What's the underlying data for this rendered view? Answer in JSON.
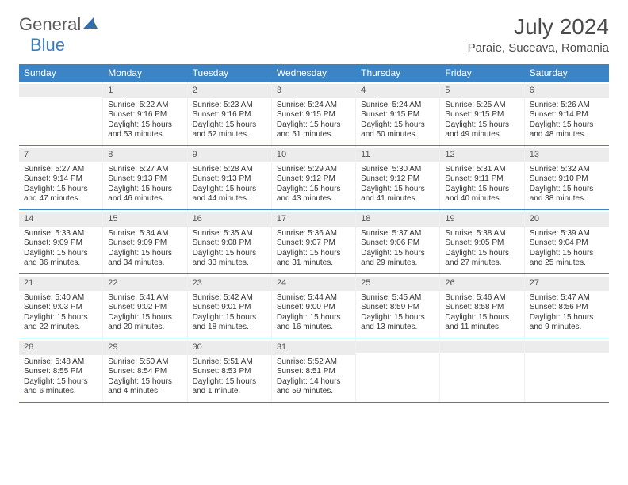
{
  "logo": {
    "text1": "General",
    "text2": "Blue",
    "color1": "#5a5a5a",
    "color2": "#3b7bbf",
    "sail_color": "#2f6fb0"
  },
  "title": "July 2024",
  "location": "Paraie, Suceava, Romania",
  "colors": {
    "header_bg": "#3b85c6",
    "header_text": "#ffffff",
    "daynum_bg": "#ececec",
    "body_text": "#333333",
    "divider": "#3b85c6"
  },
  "fonts": {
    "title_size": 28,
    "location_size": 15,
    "dayhead_size": 12,
    "cell_size": 10
  },
  "day_headers": [
    "Sunday",
    "Monday",
    "Tuesday",
    "Wednesday",
    "Thursday",
    "Friday",
    "Saturday"
  ],
  "weeks": [
    [
      {
        "n": "",
        "sr": "",
        "ss": "",
        "dl": ""
      },
      {
        "n": "1",
        "sr": "5:22 AM",
        "ss": "9:16 PM",
        "dl": "15 hours and 53 minutes."
      },
      {
        "n": "2",
        "sr": "5:23 AM",
        "ss": "9:16 PM",
        "dl": "15 hours and 52 minutes."
      },
      {
        "n": "3",
        "sr": "5:24 AM",
        "ss": "9:15 PM",
        "dl": "15 hours and 51 minutes."
      },
      {
        "n": "4",
        "sr": "5:24 AM",
        "ss": "9:15 PM",
        "dl": "15 hours and 50 minutes."
      },
      {
        "n": "5",
        "sr": "5:25 AM",
        "ss": "9:15 PM",
        "dl": "15 hours and 49 minutes."
      },
      {
        "n": "6",
        "sr": "5:26 AM",
        "ss": "9:14 PM",
        "dl": "15 hours and 48 minutes."
      }
    ],
    [
      {
        "n": "7",
        "sr": "5:27 AM",
        "ss": "9:14 PM",
        "dl": "15 hours and 47 minutes."
      },
      {
        "n": "8",
        "sr": "5:27 AM",
        "ss": "9:13 PM",
        "dl": "15 hours and 46 minutes."
      },
      {
        "n": "9",
        "sr": "5:28 AM",
        "ss": "9:13 PM",
        "dl": "15 hours and 44 minutes."
      },
      {
        "n": "10",
        "sr": "5:29 AM",
        "ss": "9:12 PM",
        "dl": "15 hours and 43 minutes."
      },
      {
        "n": "11",
        "sr": "5:30 AM",
        "ss": "9:12 PM",
        "dl": "15 hours and 41 minutes."
      },
      {
        "n": "12",
        "sr": "5:31 AM",
        "ss": "9:11 PM",
        "dl": "15 hours and 40 minutes."
      },
      {
        "n": "13",
        "sr": "5:32 AM",
        "ss": "9:10 PM",
        "dl": "15 hours and 38 minutes."
      }
    ],
    [
      {
        "n": "14",
        "sr": "5:33 AM",
        "ss": "9:09 PM",
        "dl": "15 hours and 36 minutes."
      },
      {
        "n": "15",
        "sr": "5:34 AM",
        "ss": "9:09 PM",
        "dl": "15 hours and 34 minutes."
      },
      {
        "n": "16",
        "sr": "5:35 AM",
        "ss": "9:08 PM",
        "dl": "15 hours and 33 minutes."
      },
      {
        "n": "17",
        "sr": "5:36 AM",
        "ss": "9:07 PM",
        "dl": "15 hours and 31 minutes."
      },
      {
        "n": "18",
        "sr": "5:37 AM",
        "ss": "9:06 PM",
        "dl": "15 hours and 29 minutes."
      },
      {
        "n": "19",
        "sr": "5:38 AM",
        "ss": "9:05 PM",
        "dl": "15 hours and 27 minutes."
      },
      {
        "n": "20",
        "sr": "5:39 AM",
        "ss": "9:04 PM",
        "dl": "15 hours and 25 minutes."
      }
    ],
    [
      {
        "n": "21",
        "sr": "5:40 AM",
        "ss": "9:03 PM",
        "dl": "15 hours and 22 minutes."
      },
      {
        "n": "22",
        "sr": "5:41 AM",
        "ss": "9:02 PM",
        "dl": "15 hours and 20 minutes."
      },
      {
        "n": "23",
        "sr": "5:42 AM",
        "ss": "9:01 PM",
        "dl": "15 hours and 18 minutes."
      },
      {
        "n": "24",
        "sr": "5:44 AM",
        "ss": "9:00 PM",
        "dl": "15 hours and 16 minutes."
      },
      {
        "n": "25",
        "sr": "5:45 AM",
        "ss": "8:59 PM",
        "dl": "15 hours and 13 minutes."
      },
      {
        "n": "26",
        "sr": "5:46 AM",
        "ss": "8:58 PM",
        "dl": "15 hours and 11 minutes."
      },
      {
        "n": "27",
        "sr": "5:47 AM",
        "ss": "8:56 PM",
        "dl": "15 hours and 9 minutes."
      }
    ],
    [
      {
        "n": "28",
        "sr": "5:48 AM",
        "ss": "8:55 PM",
        "dl": "15 hours and 6 minutes."
      },
      {
        "n": "29",
        "sr": "5:50 AM",
        "ss": "8:54 PM",
        "dl": "15 hours and 4 minutes."
      },
      {
        "n": "30",
        "sr": "5:51 AM",
        "ss": "8:53 PM",
        "dl": "15 hours and 1 minute."
      },
      {
        "n": "31",
        "sr": "5:52 AM",
        "ss": "8:51 PM",
        "dl": "14 hours and 59 minutes."
      },
      {
        "n": "",
        "sr": "",
        "ss": "",
        "dl": ""
      },
      {
        "n": "",
        "sr": "",
        "ss": "",
        "dl": ""
      },
      {
        "n": "",
        "sr": "",
        "ss": "",
        "dl": ""
      }
    ]
  ],
  "labels": {
    "sunrise": "Sunrise:",
    "sunset": "Sunset:",
    "daylight": "Daylight:"
  }
}
